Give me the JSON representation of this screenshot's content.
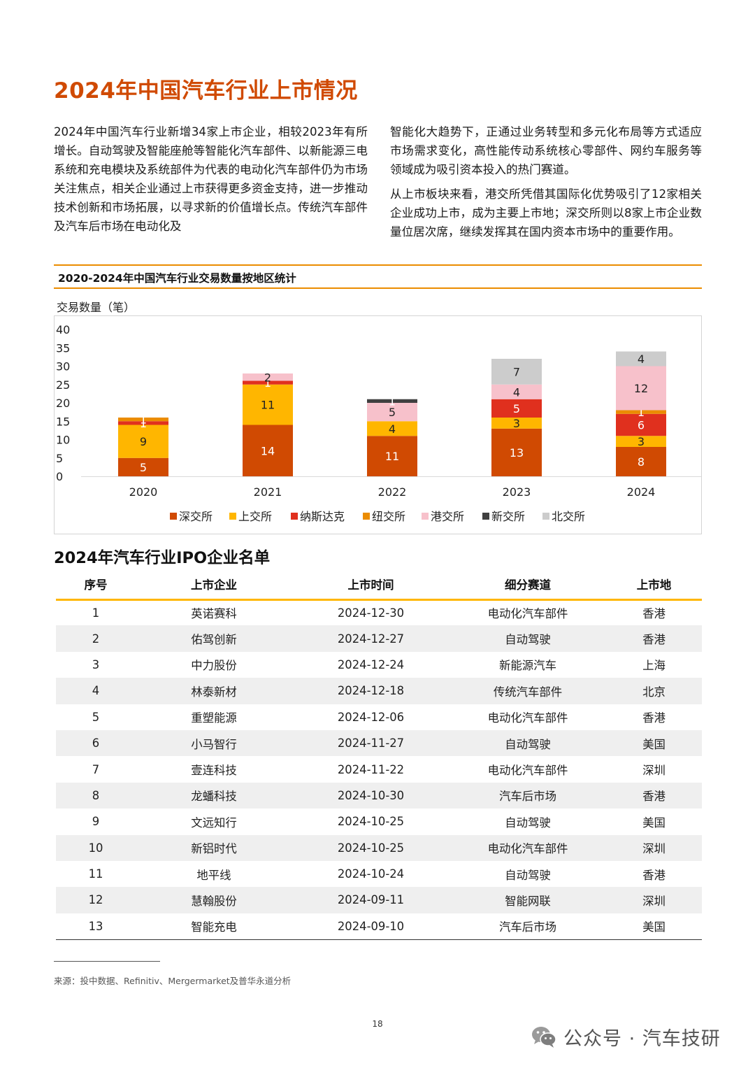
{
  "title": "2024年中国汽车行业上市情况",
  "intro": {
    "left": "2024年中国汽车行业新增34家上市企业，相较2023年有所增长。自动驾驶及智能座舱等智能化汽车部件、以新能源三电系统和充电模块及系统部件为代表的电动化汽车部件仍为市场关注焦点，相关企业通过上市获得更多资金支持，进一步推动技术创新和市场拓展，以寻求新的价值增长点。传统汽车部件及汽车后市场在电动化及",
    "right_p1": "智能化大趋势下，正通过业务转型和多元化布局等方式适应市场需求变化，高性能传动系统核心零部件、网约车服务等领域成为吸引资本投入的热门赛道。",
    "right_p2": "从上市板块来看，港交所凭借其国际化优势吸引了12家相关企业成功上市，成为主要上市地；深交所则以8家上市企业数量位居次席，继续发挥其在国内资本市场中的重要作用。"
  },
  "chart_data": {
    "type": "bar",
    "stacked": true,
    "title": "2020-2024年中国汽车行业交易数量按地区统计",
    "xlabel": "",
    "ylabel": "交易数量（笔）",
    "ylim": [
      0,
      40
    ],
    "yticks": [
      0,
      5,
      10,
      15,
      20,
      25,
      30,
      35,
      40
    ],
    "categories": [
      "2020",
      "2021",
      "2022",
      "2023",
      "2024"
    ],
    "legend_position": "bottom",
    "grid": false,
    "series": [
      {
        "name": "深交所",
        "color": "#d04a02",
        "values": [
          5,
          14,
          11,
          13,
          8
        ]
      },
      {
        "name": "上交所",
        "color": "#ffb600",
        "values": [
          9,
          11,
          4,
          3,
          3
        ]
      },
      {
        "name": "纳斯达克",
        "color": "#e0301e",
        "values": [
          1,
          1,
          0,
          5,
          6
        ]
      },
      {
        "name": "纽交所",
        "color": "#eb8c00",
        "values": [
          1,
          0,
          0,
          0,
          1
        ]
      },
      {
        "name": "港交所",
        "color": "#f7c1cb",
        "values": [
          0,
          2,
          5,
          4,
          12
        ]
      },
      {
        "name": "新交所",
        "color": "#404040",
        "values": [
          0,
          0,
          1,
          0,
          0
        ]
      },
      {
        "name": "北交所",
        "color": "#cccccc",
        "values": [
          0,
          0,
          0,
          7,
          4
        ]
      }
    ]
  },
  "table": {
    "title": "2024年汽车行业IPO企业名单",
    "headers": [
      "序号",
      "上市企业",
      "上市时间",
      "细分赛道",
      "上市地"
    ],
    "rows": [
      [
        "1",
        "英诺赛科",
        "2024-12-30",
        "电动化汽车部件",
        "香港"
      ],
      [
        "2",
        "佑驾创新",
        "2024-12-27",
        "自动驾驶",
        "香港"
      ],
      [
        "3",
        "中力股份",
        "2024-12-24",
        "新能源汽车",
        "上海"
      ],
      [
        "4",
        "林泰新材",
        "2024-12-18",
        "传统汽车部件",
        "北京"
      ],
      [
        "5",
        "重塑能源",
        "2024-12-06",
        "电动化汽车部件",
        "香港"
      ],
      [
        "6",
        "小马智行",
        "2024-11-27",
        "自动驾驶",
        "美国"
      ],
      [
        "7",
        "壹连科技",
        "2024-11-22",
        "电动化汽车部件",
        "深圳"
      ],
      [
        "8",
        "龙蟠科技",
        "2024-10-30",
        "汽车后市场",
        "香港"
      ],
      [
        "9",
        "文远知行",
        "2024-10-25",
        "自动驾驶",
        "美国"
      ],
      [
        "10",
        "新铝时代",
        "2024-10-25",
        "电动化汽车部件",
        "深圳"
      ],
      [
        "11",
        "地平线",
        "2024-10-24",
        "自动驾驶",
        "香港"
      ],
      [
        "12",
        "慧翰股份",
        "2024-09-11",
        "智能网联",
        "深圳"
      ],
      [
        "13",
        "智能充电",
        "2024-09-10",
        "汽车后市场",
        "美国"
      ]
    ]
  },
  "source": "来源：投中数据、Refinitiv、Mergermarket及普华永道分析",
  "page_number": "18",
  "watermark": {
    "text": "公众号 · 汽车技研",
    "icon": "wechat-icon"
  }
}
